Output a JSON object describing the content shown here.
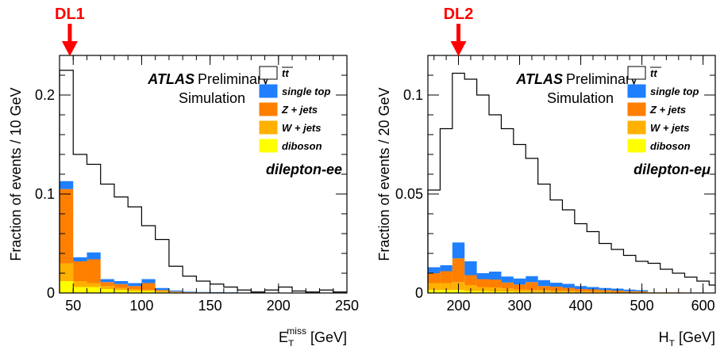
{
  "chart_data": [
    {
      "type": "stacked-histogram",
      "marker_label": "DL1",
      "marker_x": 47.5,
      "ylabel": "Fraction of events / 10 GeV",
      "xlabel_main": "E",
      "xlabel_sub": "T",
      "xlabel_sup": "miss",
      "xlabel_unit": " [GeV]",
      "xlim": [
        40,
        250
      ],
      "ylim": [
        0,
        0.24
      ],
      "x_ticks": [
        50,
        100,
        150,
        200,
        250
      ],
      "x_tick_labels": [
        "50",
        "100",
        "150",
        "200",
        "250"
      ],
      "y_ticks": [
        0,
        0.1,
        0.2
      ],
      "y_tick_labels": [
        "0",
        "0.1",
        "0.2"
      ],
      "atlas_label": "ATLAS",
      "prelim_label": "Preliminary",
      "sim_label": "Simulation",
      "channel_label": "dilepton-ee",
      "bin_edges": [
        40,
        50,
        60,
        70,
        80,
        90,
        100,
        110,
        120,
        130,
        140,
        150,
        160,
        170,
        180,
        190,
        200,
        210,
        220,
        230,
        240,
        250
      ],
      "ttbar": [
        0.225,
        0.14,
        0.13,
        0.11,
        0.097,
        0.087,
        0.068,
        0.054,
        0.027,
        0.017,
        0.012,
        0.009,
        0.006,
        0.003,
        0.001,
        0.003,
        0.006,
        0.002,
        0.001,
        0.003,
        0.001
      ],
      "stack": [
        {
          "name": "diboson",
          "values": [
            0.012,
            0.006,
            0.006,
            0.004,
            0.003,
            0.002,
            0.002,
            0.001,
            0.0005,
            0.0003,
            0.0003,
            0.0002,
            0.0002,
            0.0001,
            0.0001,
            0.0001,
            0.0001,
            0,
            0,
            0,
            0
          ]
        },
        {
          "name": "W + jets",
          "values": [
            0.018,
            0.006,
            0.004,
            0.003,
            0.002,
            0.002,
            0.001,
            0.001,
            0.0005,
            0.0003,
            0.0002,
            0.0002,
            0.0001,
            0.0001,
            0.0001,
            0,
            0,
            0,
            0,
            0,
            0
          ]
        },
        {
          "name": "Z + jets",
          "values": [
            0.075,
            0.02,
            0.024,
            0.004,
            0.004,
            0.003,
            0.007,
            0.001,
            0.0005,
            0.0003,
            0.0002,
            0.0002,
            0.0001,
            0.0001,
            0.0001,
            0,
            0,
            0,
            0,
            0,
            0
          ]
        },
        {
          "name": "single top",
          "values": [
            0.008,
            0.004,
            0.007,
            0.003,
            0.003,
            0.003,
            0.004,
            0.002,
            0.001,
            0.0005,
            0.0003,
            0.0003,
            0.0002,
            0.0001,
            0.0001,
            0.0001,
            0.0001,
            0,
            0,
            0,
            0
          ]
        }
      ]
    },
    {
      "type": "stacked-histogram",
      "marker_label": "DL2",
      "marker_x": 200,
      "ylabel": "Fraction of events / 20 GeV",
      "xlabel_main": "H",
      "xlabel_sub": "T",
      "xlabel_sup": "",
      "xlabel_unit": " [GeV]",
      "xlim": [
        150,
        620
      ],
      "ylim": [
        0,
        0.12
      ],
      "x_ticks": [
        200,
        300,
        400,
        500,
        600
      ],
      "x_tick_labels": [
        "200",
        "300",
        "400",
        "500",
        "600"
      ],
      "y_ticks": [
        0,
        0.05,
        0.1
      ],
      "y_tick_labels": [
        "0",
        "0.05",
        "0.1"
      ],
      "atlas_label": "ATLAS",
      "prelim_label": "Preliminary",
      "sim_label": "Simulation",
      "channel_label": "dilepton-eμ",
      "bin_edges": [
        150,
        170,
        190,
        210,
        230,
        250,
        270,
        290,
        310,
        330,
        350,
        370,
        390,
        410,
        430,
        450,
        470,
        490,
        510,
        530,
        550,
        570,
        590,
        610,
        620
      ],
      "ttbar": [
        0.052,
        0.083,
        0.111,
        0.108,
        0.1,
        0.09,
        0.083,
        0.075,
        0.068,
        0.055,
        0.047,
        0.042,
        0.035,
        0.031,
        0.025,
        0.022,
        0.019,
        0.016,
        0.015,
        0.012,
        0.01,
        0.008,
        0.006,
        0.004
      ],
      "stack": [
        {
          "name": "diboson",
          "values": [
            0.0015,
            0.0015,
            0.0015,
            0.001,
            0.001,
            0.0008,
            0.0008,
            0.0006,
            0.0005,
            0.0005,
            0.0004,
            0.0004,
            0.0003,
            0.0003,
            0.0003,
            0.0002,
            0.0002,
            0.0002,
            0.0001,
            0.0001,
            0.0001,
            0.0001,
            0.0001,
            0
          ]
        },
        {
          "name": "W + jets",
          "values": [
            0.0035,
            0.0035,
            0.004,
            0.003,
            0.002,
            0.002,
            0.0015,
            0.0012,
            0.001,
            0.001,
            0.0008,
            0.0007,
            0.0005,
            0.0005,
            0.0004,
            0.0004,
            0.0003,
            0.0003,
            0.0002,
            0.0002,
            0.0002,
            0.0001,
            0.0001,
            0
          ]
        },
        {
          "name": "Z + jets",
          "values": [
            0.005,
            0.006,
            0.012,
            0.005,
            0.004,
            0.004,
            0.003,
            0.0025,
            0.004,
            0.002,
            0.002,
            0.0015,
            0.0012,
            0.001,
            0.0008,
            0.0006,
            0.0004,
            0.0003,
            0,
            0,
            0,
            0,
            0,
            0
          ]
        },
        {
          "name": "single top",
          "values": [
            0.003,
            0.003,
            0.008,
            0.007,
            0.003,
            0.004,
            0.003,
            0.003,
            0.003,
            0.003,
            0.002,
            0.002,
            0.0015,
            0.0012,
            0.001,
            0.001,
            0.0008,
            0.0006,
            0,
            0,
            0,
            0,
            0,
            0
          ]
        }
      ]
    }
  ],
  "legend": [
    {
      "name": "tt",
      "bar": true,
      "color": "#ffffff",
      "border": "#000000"
    },
    {
      "name": "single top",
      "bar": false,
      "color": "#1f7fff",
      "border": "#1f7fff"
    },
    {
      "name": "Z + jets",
      "bar": false,
      "color": "#ff7f00",
      "border": "#ff7f00"
    },
    {
      "name": "W + jets",
      "bar": false,
      "color": "#ffb000",
      "border": "#ffb000"
    },
    {
      "name": "diboson",
      "bar": false,
      "color": "#ffff00",
      "border": "#ffff00"
    }
  ],
  "colors": {
    "single top": "#1f7fff",
    "Z + jets": "#ff7f00",
    "W + jets": "#ffb000",
    "diboson": "#ffff00",
    "marker": "#ff0000"
  }
}
